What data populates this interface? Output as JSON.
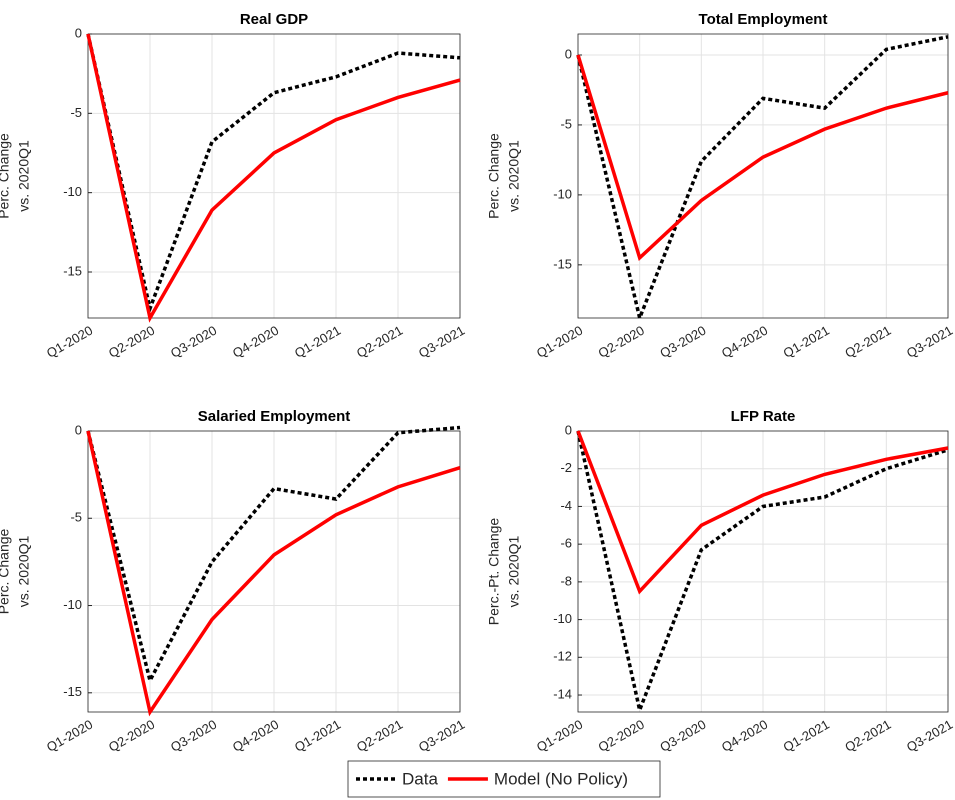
{
  "chart_data": [
    {
      "type": "line",
      "title": "Real GDP",
      "ylabel": [
        "Perc. Change",
        "vs. 2020Q1"
      ],
      "categories": [
        "Q1-2020",
        "Q2-2020",
        "Q3-2020",
        "Q4-2020",
        "Q1-2021",
        "Q2-2021",
        "Q3-2021"
      ],
      "series": [
        {
          "name": "Data",
          "color": "#000000",
          "dashed": true,
          "values": [
            0,
            -17.3,
            -6.8,
            -3.7,
            -2.7,
            -1.2,
            -1.5
          ]
        },
        {
          "name": "Model (No Policy)",
          "color": "#ff0000",
          "dashed": false,
          "values": [
            0,
            -17.9,
            -11.1,
            -7.5,
            -5.4,
            -4.0,
            -2.9
          ]
        }
      ],
      "ylim": [
        -17.9,
        0
      ],
      "yticks": [
        0,
        -5,
        -10,
        -15
      ],
      "grid": true
    },
    {
      "type": "line",
      "title": "Total Employment",
      "ylabel": [
        "Perc. Change",
        "vs. 2020Q1"
      ],
      "categories": [
        "Q1-2020",
        "Q2-2020",
        "Q3-2020",
        "Q4-2020",
        "Q1-2021",
        "Q2-2021",
        "Q3-2021"
      ],
      "series": [
        {
          "color": "#000000",
          "dashed": true,
          "values": [
            0,
            -18.8,
            -7.6,
            -3.1,
            -3.8,
            0.4,
            1.3
          ]
        },
        {
          "color": "#ff0000",
          "dashed": false,
          "values": [
            0,
            -14.5,
            -10.4,
            -7.3,
            -5.3,
            -3.8,
            -2.7
          ]
        }
      ],
      "ylim": [
        -18.8,
        1.5
      ],
      "yticks": [
        0,
        -5,
        -10,
        -15
      ],
      "grid": true
    },
    {
      "type": "line",
      "title": "Salaried Employment",
      "ylabel": [
        "Perc. Change",
        "vs. 2020Q1"
      ],
      "categories": [
        "Q1-2020",
        "Q2-2020",
        "Q3-2020",
        "Q4-2020",
        "Q1-2021",
        "Q2-2021",
        "Q3-2021"
      ],
      "series": [
        {
          "color": "#000000",
          "dashed": true,
          "values": [
            0,
            -14.3,
            -7.5,
            -3.3,
            -3.9,
            -0.1,
            0.2
          ]
        },
        {
          "color": "#ff0000",
          "dashed": false,
          "values": [
            0,
            -16.1,
            -10.8,
            -7.1,
            -4.8,
            -3.2,
            -2.1
          ]
        }
      ],
      "ylim": [
        -16.1,
        0
      ],
      "yticks": [
        0,
        -5,
        -10,
        -15
      ],
      "grid": true
    },
    {
      "type": "line",
      "title": "LFP Rate",
      "ylabel": [
        "Perc.-Pt. Change",
        "vs. 2020Q1"
      ],
      "categories": [
        "Q1-2020",
        "Q2-2020",
        "Q3-2020",
        "Q4-2020",
        "Q1-2021",
        "Q2-2021",
        "Q3-2021"
      ],
      "series": [
        {
          "color": "#000000",
          "dashed": true,
          "values": [
            0,
            -14.8,
            -6.3,
            -4.0,
            -3.5,
            -2.0,
            -1.0
          ]
        },
        {
          "color": "#ff0000",
          "dashed": false,
          "values": [
            0,
            -8.5,
            -5.0,
            -3.4,
            -2.3,
            -1.5,
            -0.9
          ]
        }
      ],
      "ylim": [
        -14.9,
        0
      ],
      "yticks": [
        0,
        -2,
        -4,
        -6,
        -8,
        -10,
        -12,
        -14
      ],
      "grid": true
    }
  ]
}
